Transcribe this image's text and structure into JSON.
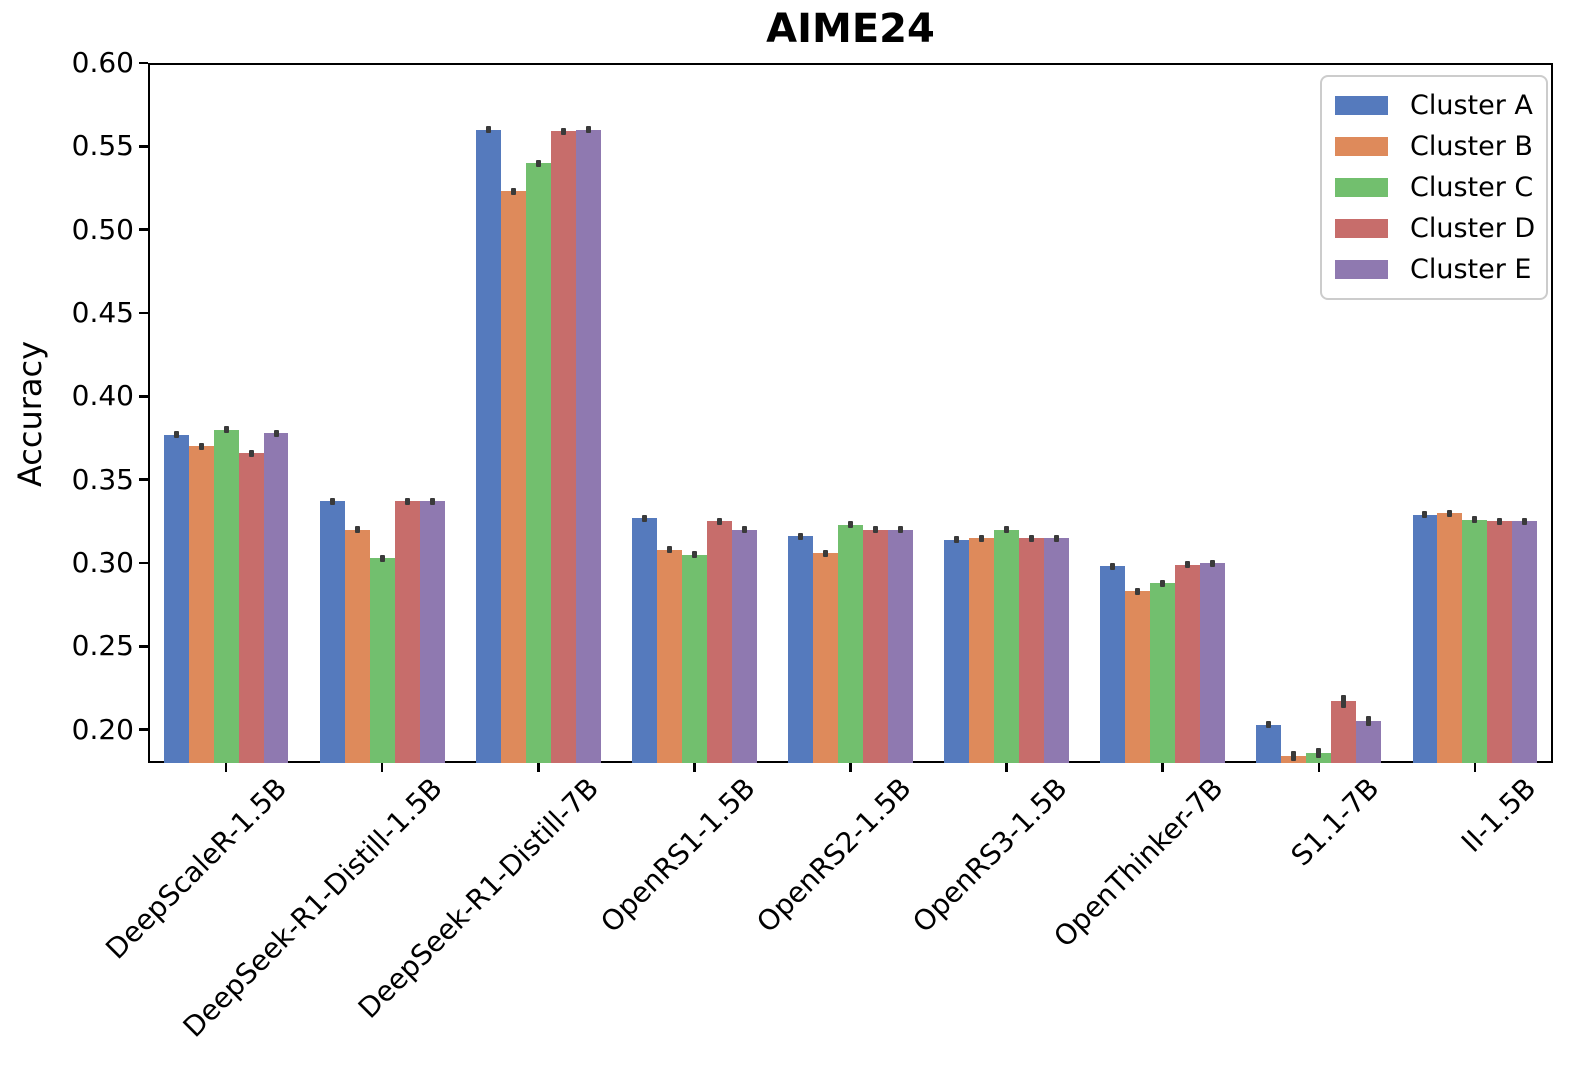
{
  "chart_data": {
    "type": "bar",
    "title": "AIME24",
    "xlabel": "",
    "ylabel": "Accuracy",
    "ylim": [
      0.18,
      0.6
    ],
    "yticks": [
      0.2,
      0.25,
      0.3,
      0.35,
      0.4,
      0.45,
      0.5,
      0.55,
      0.6
    ],
    "ytick_labels": [
      "0.20",
      "0.25",
      "0.30",
      "0.35",
      "0.40",
      "0.45",
      "0.50",
      "0.55",
      "0.60"
    ],
    "grid": false,
    "legend_position": "upper right",
    "error_bar_color": "#3a3a3a",
    "categories": [
      "DeepScaleR-1.5B",
      "DeepSeek-R1-Distill-1.5B",
      "DeepSeek-R1-Distill-7B",
      "OpenRS1-1.5B",
      "OpenRS2-1.5B",
      "OpenRS3-1.5B",
      "OpenThinker-7B",
      "S1.1-7B",
      "II-1.5B"
    ],
    "series": [
      {
        "name": "Cluster A",
        "color": "#557abd",
        "values": [
          0.377,
          0.337,
          0.56,
          0.327,
          0.316,
          0.314,
          0.298,
          0.203,
          0.329
        ],
        "errors": [
          0.002,
          0.002,
          0.002,
          0.002,
          0.002,
          0.002,
          0.002,
          0.002,
          0.002
        ]
      },
      {
        "name": "Cluster B",
        "color": "#de8a5b",
        "values": [
          0.37,
          0.32,
          0.523,
          0.308,
          0.306,
          0.315,
          0.283,
          0.184,
          0.33
        ],
        "errors": [
          0.002,
          0.002,
          0.002,
          0.002,
          0.002,
          0.002,
          0.002,
          0.003,
          0.002
        ]
      },
      {
        "name": "Cluster C",
        "color": "#72bf6e",
        "values": [
          0.38,
          0.303,
          0.54,
          0.305,
          0.323,
          0.32,
          0.288,
          0.186,
          0.326
        ],
        "errors": [
          0.002,
          0.002,
          0.002,
          0.002,
          0.002,
          0.002,
          0.002,
          0.003,
          0.002
        ]
      },
      {
        "name": "Cluster D",
        "color": "#c76d6b",
        "values": [
          0.366,
          0.337,
          0.559,
          0.325,
          0.32,
          0.315,
          0.299,
          0.217,
          0.325
        ],
        "errors": [
          0.002,
          0.002,
          0.002,
          0.002,
          0.002,
          0.002,
          0.002,
          0.004,
          0.002
        ]
      },
      {
        "name": "Cluster E",
        "color": "#8f79b0",
        "values": [
          0.378,
          0.337,
          0.56,
          0.32,
          0.32,
          0.315,
          0.3,
          0.205,
          0.325
        ],
        "errors": [
          0.002,
          0.002,
          0.002,
          0.002,
          0.002,
          0.002,
          0.002,
          0.003,
          0.002
        ]
      }
    ]
  }
}
